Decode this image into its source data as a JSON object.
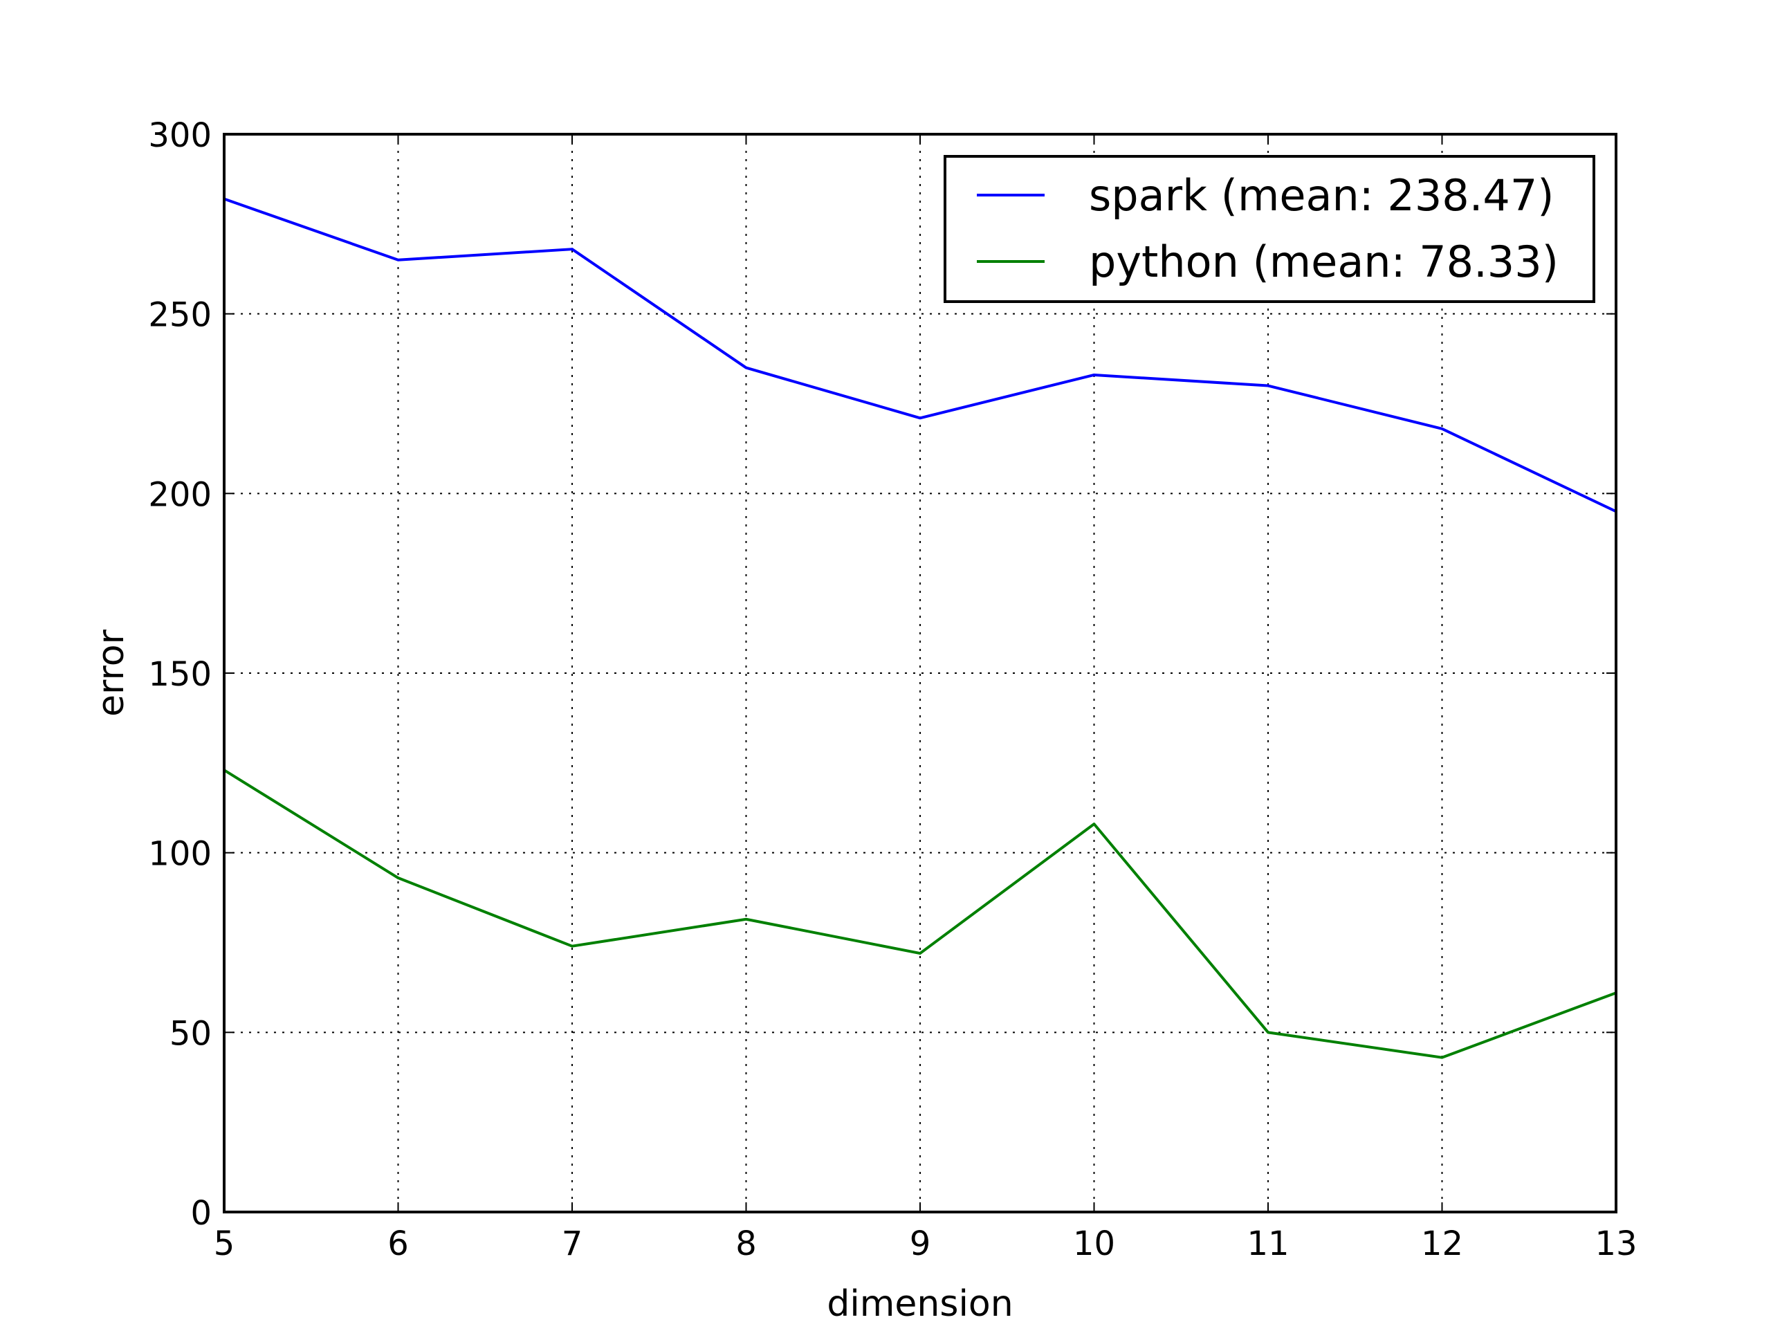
{
  "chart_data": {
    "type": "line",
    "x": [
      5,
      6,
      7,
      8,
      9,
      10,
      11,
      12,
      13
    ],
    "series": [
      {
        "name": "spark (mean: 238.47)",
        "color": "#0000ff",
        "values": [
          282,
          265,
          268,
          235,
          221,
          233,
          230,
          218,
          195
        ]
      },
      {
        "name": "python (mean: 78.33)",
        "color": "#008000",
        "values": [
          123,
          93,
          74,
          81.5,
          72,
          108,
          50,
          43,
          61
        ]
      }
    ],
    "xlabel": "dimension",
    "ylabel": "error",
    "xlim": [
      5,
      13
    ],
    "ylim": [
      0,
      300
    ],
    "xticks": [
      "5",
      "6",
      "7",
      "8",
      "9",
      "10",
      "11",
      "12",
      "13"
    ],
    "yticks": [
      "0",
      "50",
      "100",
      "150",
      "200",
      "250",
      "300"
    ],
    "grid": true,
    "grid_style": "dotted",
    "legend_position": "top-right"
  }
}
